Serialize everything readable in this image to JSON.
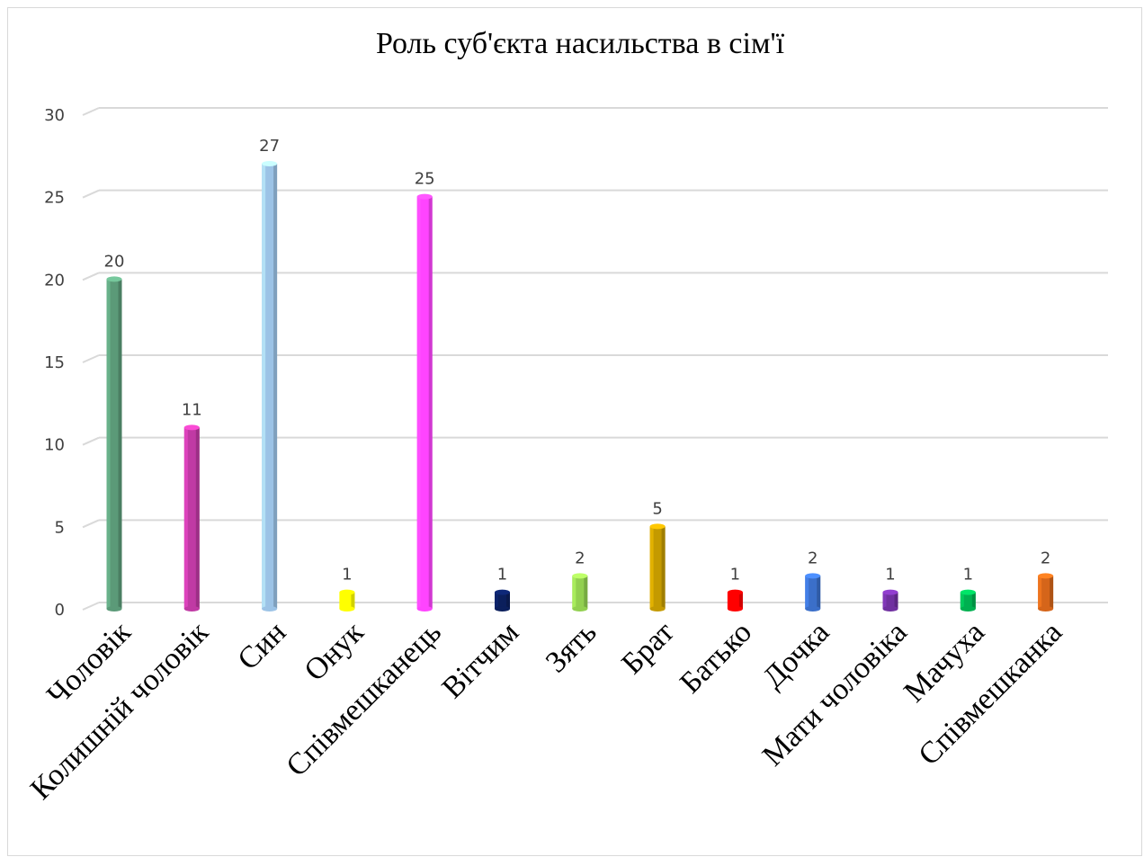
{
  "chart_data": {
    "type": "bar",
    "title": "Роль суб'єкта насильства в сім'ї",
    "xlabel": "",
    "ylabel": "",
    "ylim": [
      0,
      30
    ],
    "yticks": [
      0,
      5,
      10,
      15,
      20,
      25,
      30
    ],
    "grid": true,
    "legend": "none",
    "categories": [
      "Чоловік",
      "Колишній чоловік",
      "Син",
      "Онук",
      "Співмешканець",
      "Вітчим",
      "Зять",
      "Брат",
      "Батько",
      "Дочка",
      "Мати чоловіка",
      "Мачуха",
      "Співмешканка"
    ],
    "values": [
      20,
      11,
      27,
      1,
      25,
      1,
      2,
      5,
      1,
      2,
      1,
      1,
      2
    ],
    "data_labels": [
      "20",
      "11",
      "27",
      "1",
      "25",
      "1",
      "2",
      "5",
      "1",
      "2",
      "1",
      "1",
      "2"
    ],
    "colors": [
      "#5b9a78",
      "#c03aa4",
      "#9cc3e6",
      "#ffff00",
      "#ff44ff",
      "#0b1f5c",
      "#92d050",
      "#c49a00",
      "#ff0000",
      "#3b6fc9",
      "#7030a0",
      "#00b050",
      "#d5651a"
    ]
  }
}
